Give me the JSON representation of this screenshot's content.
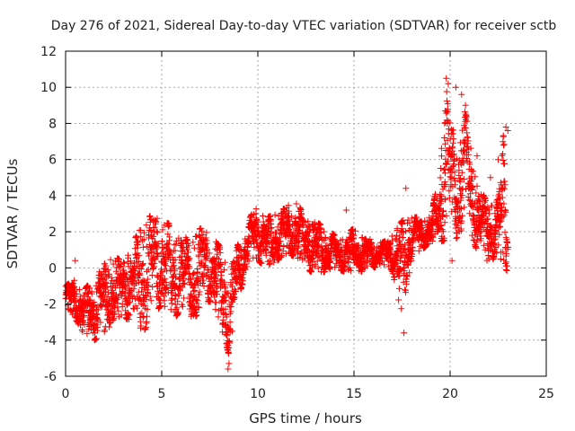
{
  "chart_data": {
    "type": "scatter",
    "title": "Day 276 of 2021, Sidereal Day-to-day VTEC variation (SDTVAR) for receiver sctb",
    "xlabel": "GPS time / hours",
    "ylabel": "SDTVAR / TECUs",
    "xlim": [
      0,
      25
    ],
    "ylim": [
      -6,
      12
    ],
    "xticks": [
      0,
      5,
      10,
      15,
      20,
      25
    ],
    "yticks": [
      -6,
      -4,
      -2,
      0,
      2,
      4,
      6,
      8,
      10,
      12
    ],
    "grid": true,
    "marker": "+",
    "color": "#ff0000",
    "series": [
      {
        "name": "SDTVAR",
        "envelope": {
          "x": [
            0,
            0.5,
            1.0,
            1.5,
            2.0,
            2.5,
            3.0,
            3.5,
            4.0,
            4.5,
            5.0,
            5.5,
            6.0,
            6.5,
            7.0,
            7.5,
            8.0,
            8.5,
            9.0,
            9.5,
            10.0,
            10.5,
            11.0,
            11.5,
            12.0,
            12.5,
            13.0,
            13.5,
            14.0,
            14.5,
            15.0,
            15.5,
            16.0,
            16.5,
            17.0,
            17.5,
            18.0,
            18.5,
            19.0,
            19.5,
            19.8,
            20.0,
            20.3,
            20.6,
            20.9,
            21.2,
            21.5,
            22.0,
            22.5,
            22.8,
            23.0
          ],
          "low": [
            -2.2,
            -2.8,
            -3.8,
            -4.0,
            -3.6,
            -3.0,
            -2.6,
            -3.2,
            -3.6,
            -2.8,
            -2.0,
            -3.2,
            -2.2,
            -3.0,
            -2.4,
            -1.8,
            -3.0,
            -4.8,
            -1.6,
            0.2,
            0.4,
            0.0,
            0.4,
            0.8,
            0.6,
            0.0,
            -0.4,
            -0.2,
            0.0,
            -0.2,
            -0.2,
            -0.2,
            0.0,
            0.2,
            -0.2,
            -2.8,
            0.6,
            1.0,
            1.4,
            1.4,
            1.6,
            1.2,
            1.6,
            2.0,
            2.4,
            1.6,
            0.6,
            0.2,
            0.8,
            0.0,
            -0.2
          ],
          "high": [
            -1.0,
            -0.6,
            -1.2,
            -0.4,
            0.2,
            0.6,
            0.4,
            1.4,
            2.4,
            3.0,
            2.6,
            2.4,
            2.2,
            1.2,
            2.2,
            2.0,
            1.2,
            -0.2,
            1.4,
            2.6,
            3.6,
            2.8,
            3.0,
            3.4,
            3.8,
            2.6,
            2.6,
            2.2,
            1.8,
            1.8,
            2.2,
            1.6,
            1.6,
            1.4,
            1.8,
            2.6,
            2.8,
            2.8,
            2.8,
            5.6,
            10.0,
            8.4,
            7.2,
            9.2,
            8.2,
            5.4,
            4.6,
            3.4,
            4.0,
            7.6,
            6.4
          ]
        },
        "outliers": [
          {
            "x": 8.45,
            "y": -5.6
          },
          {
            "x": 8.5,
            "y": -5.3
          },
          {
            "x": 19.8,
            "y": 10.5
          },
          {
            "x": 19.9,
            "y": 10.2
          },
          {
            "x": 20.3,
            "y": 10.0
          },
          {
            "x": 20.6,
            "y": 9.6
          },
          {
            "x": 20.8,
            "y": 9.0
          },
          {
            "x": 21.4,
            "y": 6.2
          },
          {
            "x": 22.1,
            "y": 5.0
          },
          {
            "x": 22.5,
            "y": 6.0
          },
          {
            "x": 22.9,
            "y": 7.8
          },
          {
            "x": 23.0,
            "y": 7.6
          },
          {
            "x": 0.5,
            "y": 0.4
          },
          {
            "x": 14.6,
            "y": 3.2
          },
          {
            "x": 17.6,
            "y": -3.6
          },
          {
            "x": 17.7,
            "y": 4.4
          },
          {
            "x": 20.1,
            "y": 0.4
          }
        ]
      }
    ]
  }
}
